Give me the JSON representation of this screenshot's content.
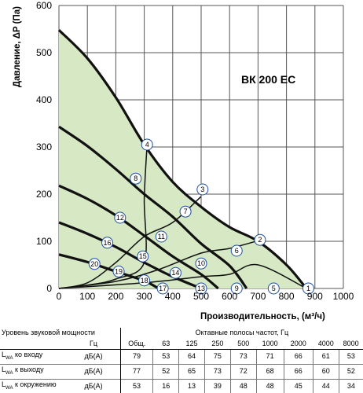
{
  "chart_data": {
    "type": "line",
    "title": "ВК 200 ЕС",
    "xlabel": "Производительность, (м³/ч)",
    "ylabel": "Давление, ΔP (Па)",
    "xlim": [
      0,
      1000
    ],
    "ylim": [
      0,
      600
    ],
    "xticks": [
      0,
      100,
      200,
      300,
      400,
      500,
      600,
      700,
      800,
      900,
      1000
    ],
    "yticks": [
      0,
      100,
      200,
      300,
      400,
      500,
      600
    ],
    "grid": true,
    "fill_color": "#d6e8c4",
    "curve_color": "#111111",
    "series": [
      {
        "points": [
          [
            0,
            548
          ],
          [
            100,
            488
          ],
          [
            200,
            405
          ],
          [
            300,
            305
          ],
          [
            400,
            226
          ],
          [
            500,
            173
          ],
          [
            600,
            130
          ],
          [
            700,
            100
          ],
          [
            800,
            50
          ],
          [
            870,
            0
          ]
        ]
      },
      {
        "points": [
          [
            0,
            343
          ],
          [
            100,
            302
          ],
          [
            200,
            253
          ],
          [
            300,
            200
          ],
          [
            400,
            152
          ],
          [
            500,
            95
          ],
          [
            600,
            48
          ],
          [
            660,
            0
          ]
        ]
      },
      {
        "points": [
          [
            0,
            218
          ],
          [
            100,
            190
          ],
          [
            200,
            155
          ],
          [
            300,
            112
          ],
          [
            400,
            68
          ],
          [
            500,
            30
          ],
          [
            560,
            0
          ]
        ]
      },
      {
        "points": [
          [
            0,
            140
          ],
          [
            100,
            116
          ],
          [
            200,
            88
          ],
          [
            300,
            55
          ],
          [
            400,
            25
          ],
          [
            500,
            0
          ]
        ]
      },
      {
        "points": [
          [
            0,
            72
          ],
          [
            100,
            56
          ],
          [
            200,
            36
          ],
          [
            300,
            16
          ],
          [
            350,
            0
          ]
        ]
      }
    ],
    "system_lines": [
      {
        "points": [
          [
            0,
            0
          ],
          [
            100,
            7
          ],
          [
            200,
            20
          ],
          [
            300,
            55
          ],
          [
            300,
            190
          ],
          [
            310,
            305
          ]
        ]
      },
      {
        "points": [
          [
            0,
            0
          ],
          [
            100,
            12
          ],
          [
            200,
            55
          ],
          [
            300,
            110
          ],
          [
            400,
            140
          ],
          [
            500,
            195
          ]
        ]
      },
      {
        "points": [
          [
            0,
            0
          ],
          [
            200,
            15
          ],
          [
            350,
            40
          ],
          [
            500,
            75
          ],
          [
            600,
            85
          ],
          [
            710,
            103
          ]
        ]
      },
      {
        "points": [
          [
            0,
            0
          ],
          [
            300,
            12
          ],
          [
            500,
            25
          ],
          [
            600,
            30
          ],
          [
            700,
            50
          ],
          [
            870,
            0
          ]
        ]
      }
    ],
    "markers": [
      {
        "label": "1",
        "x": 877,
        "y": 0
      },
      {
        "label": "2",
        "x": 707,
        "y": 103
      },
      {
        "label": "3",
        "x": 505,
        "y": 210
      },
      {
        "label": "4",
        "x": 310,
        "y": 305
      },
      {
        "label": "5",
        "x": 755,
        "y": 0
      },
      {
        "label": "6",
        "x": 625,
        "y": 80
      },
      {
        "label": "7",
        "x": 445,
        "y": 163
      },
      {
        "label": "8",
        "x": 270,
        "y": 233
      },
      {
        "label": "9",
        "x": 625,
        "y": 0
      },
      {
        "label": "10",
        "x": 500,
        "y": 53
      },
      {
        "label": "11",
        "x": 360,
        "y": 110
      },
      {
        "label": "12",
        "x": 215,
        "y": 150
      },
      {
        "label": "13",
        "x": 500,
        "y": 0
      },
      {
        "label": "14",
        "x": 410,
        "y": 33
      },
      {
        "label": "15",
        "x": 295,
        "y": 68
      },
      {
        "label": "16",
        "x": 170,
        "y": 97
      },
      {
        "label": "17",
        "x": 365,
        "y": 0
      },
      {
        "label": "18",
        "x": 300,
        "y": 17
      },
      {
        "label": "19",
        "x": 210,
        "y": 36
      },
      {
        "label": "20",
        "x": 125,
        "y": 52
      }
    ]
  },
  "table": {
    "row1_left": "Уровень звуковой мощности",
    "row1_right": "Октавные полосы частот, Гц",
    "row2_unit": "Гц",
    "columns": [
      "Общ.",
      "63",
      "125",
      "250",
      "500",
      "1000",
      "2000",
      "4000",
      "8000"
    ],
    "rows": [
      {
        "label": "LwA ко входу",
        "unit": "дБ(А)",
        "values": [
          "79",
          "53",
          "64",
          "75",
          "73",
          "71",
          "66",
          "61",
          "53"
        ]
      },
      {
        "label": "LwA к выходу",
        "unit": "дБ(А)",
        "values": [
          "77",
          "52",
          "65",
          "73",
          "72",
          "68",
          "66",
          "60",
          "52"
        ]
      },
      {
        "label": "LwA к окружению",
        "unit": "дБ(А)",
        "values": [
          "53",
          "16",
          "13",
          "39",
          "48",
          "48",
          "45",
          "44",
          "34"
        ]
      }
    ]
  }
}
